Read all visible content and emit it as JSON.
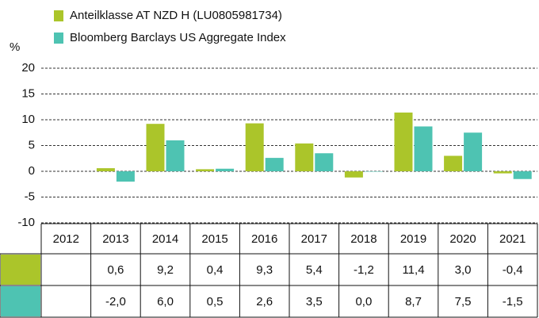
{
  "chart_data": {
    "type": "bar",
    "y_label": "%",
    "categories": [
      "2012",
      "2013",
      "2014",
      "2015",
      "2016",
      "2017",
      "2018",
      "2019",
      "2020",
      "2021"
    ],
    "series": [
      {
        "name": "Anteilklasse AT NZD H (LU0805981734)",
        "color": "#abc52a",
        "values": [
          null,
          0.6,
          9.2,
          0.4,
          9.3,
          5.4,
          -1.2,
          11.4,
          3.0,
          -0.4
        ],
        "value_labels": [
          null,
          "0,6",
          "9,2",
          "0,4",
          "9,3",
          "5,4",
          "-1,2",
          "11,4",
          "3,0",
          "-0,4"
        ]
      },
      {
        "name": "Bloomberg Barclays US Aggregate Index",
        "color": "#4ec3b2",
        "values": [
          null,
          -2.0,
          6.0,
          0.5,
          2.6,
          3.5,
          0.0,
          8.7,
          7.5,
          -1.5
        ],
        "value_labels": [
          null,
          "-2,0",
          "6,0",
          "0,5",
          "2,6",
          "3,5",
          "0,0",
          "8,7",
          "7,5",
          "-1,5"
        ]
      }
    ],
    "ylim": [
      -10,
      20
    ],
    "yticks": [
      20,
      15,
      10,
      5,
      0,
      -5,
      -10
    ],
    "grid": true
  }
}
